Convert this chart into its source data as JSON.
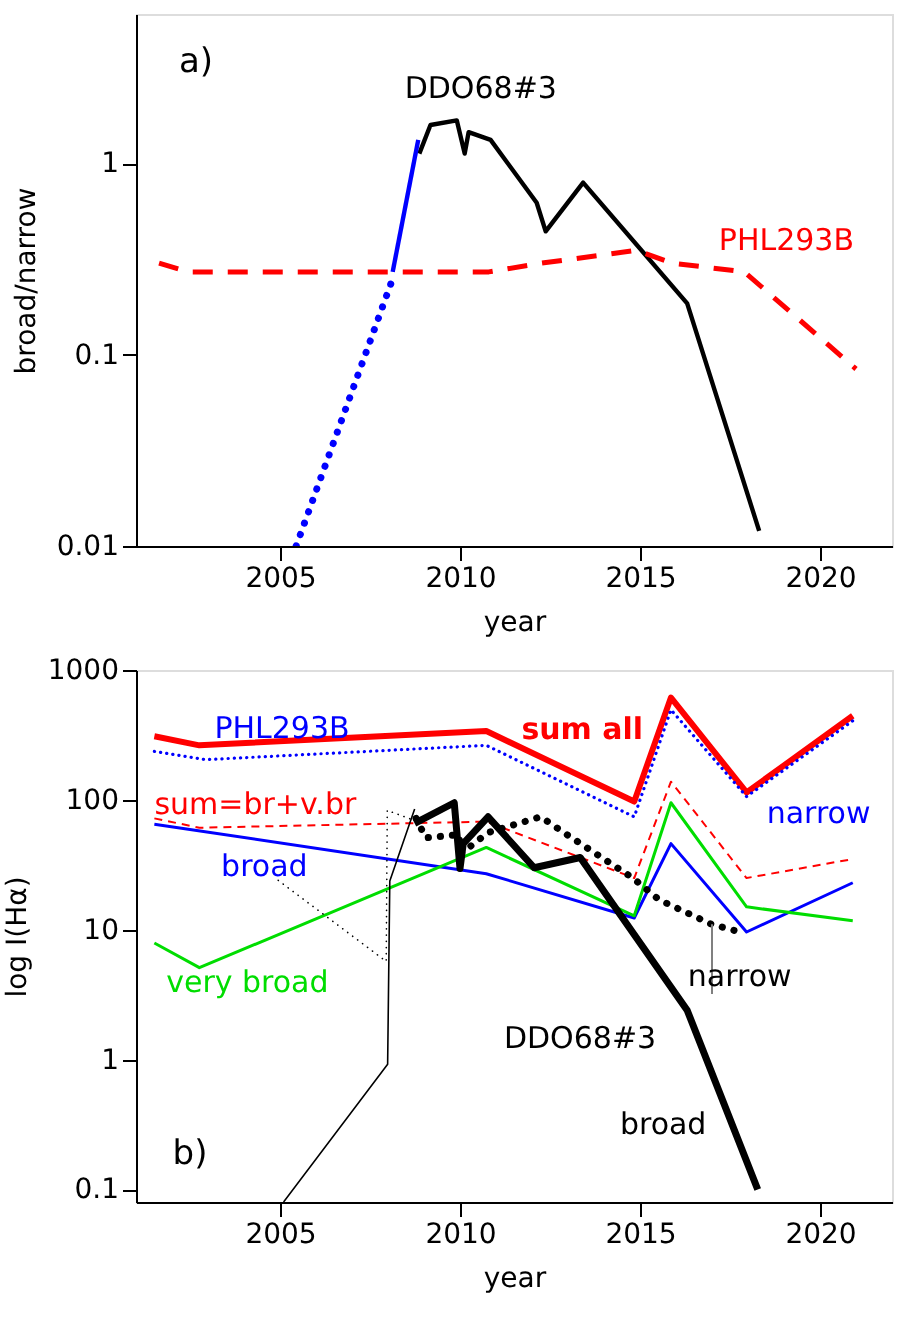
{
  "chart_data": [
    {
      "type": "line",
      "xlabel": "year",
      "ylabel": "broad/narrow",
      "log": true,
      "xlim": [
        2001,
        2022
      ],
      "ylim": [
        0.01,
        6
      ],
      "xticks": [
        2005,
        2010,
        2015,
        2020
      ],
      "yticks": [
        0.01,
        0.1,
        1
      ],
      "grid": false,
      "marker": "none",
      "annotations": [
        "a)"
      ],
      "series": [
        {
          "name": "DDO68#3",
          "color": "#000000",
          "line_style": "solid",
          "x": [
            2008.87,
            2009.18,
            2009.91,
            2010.13,
            2010.24,
            2010.85,
            2012.13,
            2012.38,
            2013.42,
            2016.31,
            2018.31
          ],
          "values": [
            1.12,
            1.58,
            1.67,
            1.12,
            1.45,
            1.32,
            0.62,
            0.44,
            0.79,
            0.185,
            0.012
          ]
        },
        {
          "color": "#0000ff",
          "line_style": "solid",
          "x": [
            2008.13,
            2008.84
          ],
          "values": [
            0.27,
            1.32
          ]
        },
        {
          "color": "#0000ff",
          "line_style": "dotted",
          "x": [
            2005.45,
            2008.1
          ],
          "values": [
            0.01,
            0.24
          ]
        },
        {
          "name": "PHL293B",
          "color": "#ff0000",
          "line_style": "dashed",
          "x": [
            2001.64,
            2002.45,
            2010.8,
            2012.27,
            2014.9,
            2015.9,
            2017.9,
            2021.0
          ],
          "values": [
            0.3,
            0.27,
            0.27,
            0.3,
            0.35,
            0.3,
            0.27,
            0.084
          ]
        }
      ]
    },
    {
      "type": "line",
      "xlabel": "year",
      "ylabel": "log I(Hα)",
      "log": true,
      "xlim": [
        2001,
        2022
      ],
      "ylim": [
        0.08,
        1000
      ],
      "xticks": [
        2005,
        2010,
        2015,
        2020
      ],
      "yticks": [
        0.1,
        1,
        10,
        100,
        1000
      ],
      "grid": false,
      "marker": "none",
      "annotations": [
        "PHL293B",
        "DDO68#3",
        "b)"
      ],
      "series": [
        {
          "name": "sum all",
          "color": "#ff0000",
          "line_style": "solid",
          "x": [
            2001.51,
            2002.76,
            2010.73,
            2014.84,
            2015.86,
            2017.96,
            2020.91
          ],
          "values": [
            309,
            263,
            339,
            97,
            614,
            114,
            444
          ]
        },
        {
          "name": "narrow",
          "color": "#0000ff",
          "line_style": "dotted",
          "x": [
            2001.51,
            2002.94,
            2010.73,
            2014.84,
            2015.86,
            2017.96,
            2020.91
          ],
          "values": [
            236,
            204,
            263,
            74,
            494,
            106,
            406
          ]
        },
        {
          "name": "sum=br+v.br",
          "color": "#ff0000",
          "line_style": "dashed",
          "x": [
            2001.51,
            2002.76,
            2010.73,
            2014.84,
            2015.86,
            2017.96,
            2020.91
          ],
          "values": [
            72,
            61,
            68,
            25,
            138,
            25,
            35
          ]
        },
        {
          "name": "broad",
          "color": "#0000ff",
          "line_style": "solid",
          "x": [
            2001.51,
            2010.73,
            2014.84,
            2015.86,
            2017.96,
            2020.91
          ],
          "values": [
            65,
            27,
            12.3,
            46,
            9.6,
            23
          ]
        },
        {
          "name": "very broad",
          "color": "#00dd00",
          "line_style": "solid",
          "x": [
            2001.51,
            2002.76,
            2010.73,
            2014.84,
            2015.86,
            2017.96,
            2020.91
          ],
          "values": [
            7.9,
            5.1,
            43,
            12.8,
            95,
            15,
            11.7
          ]
        },
        {
          "name": "broad",
          "color": "#000000",
          "line_style": "solid",
          "x": [
            2008.74,
            2009.84,
            2010.0,
            2010.09,
            2010.78,
            2012.06,
            2013.34,
            2016.31,
            2018.27
          ],
          "values": [
            66,
            95,
            29.6,
            46,
            74,
            30,
            36,
            2.4,
            0.1
          ]
        },
        {
          "name": "narrow",
          "color": "#000000",
          "line_style": "dotted",
          "x": [
            2008.78,
            2009.05,
            2009.96,
            2010.05,
            2010.78,
            2012.24,
            2012.97,
            2014.8,
            2015.53,
            2016.99,
            2017.9
          ],
          "values": [
            72,
            51,
            54,
            39,
            56,
            74,
            54,
            25,
            17,
            11,
            9.4
          ]
        },
        {
          "color": "#000000",
          "line_style": "solid",
          "x": [
            2005.1,
            2007.99,
            2008.05,
            2008.74
          ],
          "values": [
            0.08,
            0.92,
            23.7,
            85
          ]
        },
        {
          "color": "#000000",
          "line_style": "dotted",
          "x": [
            2004.95,
            2007.95,
            2007.98,
            2008.7
          ],
          "values": [
            24,
            5.7,
            83,
            70
          ]
        },
        {
          "color": "#808080",
          "line_style": "solid",
          "x": [
            2017.0,
            2017.0
          ],
          "values": [
            11,
            3.2
          ]
        }
      ]
    }
  ]
}
